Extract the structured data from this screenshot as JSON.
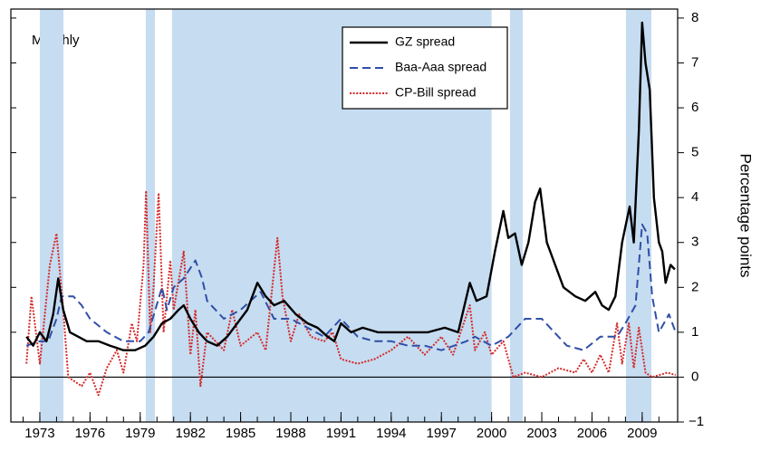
{
  "chart_data": {
    "type": "line",
    "annotation": "Monthly",
    "y_label": "Percentage points",
    "xlim": [
      1971.27,
      2011.12
    ],
    "ylim": [
      -1,
      8.2
    ],
    "xticks": [
      1973,
      1976,
      1979,
      1982,
      1985,
      1988,
      1991,
      1994,
      1997,
      2000,
      2003,
      2006,
      2009
    ],
    "xminorticks": [
      1972,
      1973,
      1974,
      1975,
      1976,
      1977,
      1978,
      1979,
      1980,
      1981,
      1982,
      1983,
      1984,
      1985,
      1986,
      1987,
      1988,
      1989,
      1990,
      1991,
      1992,
      1993,
      1994,
      1995,
      1996,
      1997,
      1998,
      1999,
      2000,
      2001,
      2002,
      2003,
      2004,
      2005,
      2006,
      2007,
      2008,
      2009,
      2010
    ],
    "yticks": [
      {
        "value": -1,
        "label": "−1"
      },
      0,
      1,
      2,
      3,
      4,
      5,
      6,
      7,
      8
    ],
    "zero_line": 0,
    "recessions": [
      [
        1973.0,
        1974.41
      ],
      [
        1979.33,
        1979.88
      ],
      [
        1980.9,
        2000.0
      ],
      [
        1990.16,
        1990.92
      ],
      [
        2001.1,
        2001.86
      ],
      [
        2008.03,
        2009.55
      ]
    ],
    "recession_color": "#c6dcf1",
    "legend": "top-center",
    "series": [
      {
        "name": "GZ spread",
        "color": "#000000",
        "dash": "solid",
        "x": [
          1972.2,
          1972.6,
          1973.0,
          1973.4,
          1973.8,
          1974.1,
          1974.4,
          1974.8,
          1975.3,
          1975.8,
          1976.5,
          1977.2,
          1978.0,
          1978.7,
          1979.3,
          1979.8,
          1980.3,
          1980.8,
          1981.3,
          1981.6,
          1982.0,
          1982.5,
          1983.0,
          1983.6,
          1984.2,
          1984.8,
          1985.4,
          1986.0,
          1986.5,
          1987.0,
          1987.6,
          1988.3,
          1989.0,
          1989.6,
          1990.2,
          1990.6,
          1991.0,
          1991.6,
          1992.3,
          1993.2,
          1994.2,
          1995.2,
          1996.2,
          1997.2,
          1998.0,
          1998.7,
          1999.1,
          1999.7,
          2000.2,
          2000.7,
          2001.0,
          2001.4,
          2001.8,
          2002.2,
          2002.6,
          2002.9,
          2003.3,
          2003.8,
          2004.3,
          2005.0,
          2005.6,
          2006.2,
          2006.6,
          2007.0,
          2007.4,
          2007.8,
          2008.25,
          2008.5,
          2008.8,
          2009.0,
          2009.2,
          2009.45,
          2009.7,
          2010.0,
          2010.2,
          2010.4,
          2010.7,
          2010.95
        ],
        "values": [
          0.9,
          0.7,
          1.0,
          0.8,
          1.4,
          2.2,
          1.5,
          1.0,
          0.9,
          0.8,
          0.8,
          0.7,
          0.6,
          0.6,
          0.7,
          0.9,
          1.2,
          1.3,
          1.5,
          1.6,
          1.3,
          1.0,
          0.8,
          0.7,
          0.9,
          1.2,
          1.5,
          2.1,
          1.8,
          1.6,
          1.7,
          1.4,
          1.2,
          1.1,
          0.9,
          0.8,
          1.2,
          1.0,
          1.1,
          1.0,
          1.0,
          1.0,
          1.0,
          1.1,
          1.0,
          2.1,
          1.7,
          1.8,
          2.8,
          3.7,
          3.1,
          3.2,
          2.5,
          3.0,
          3.9,
          4.2,
          3.0,
          2.5,
          2.0,
          1.8,
          1.7,
          1.9,
          1.6,
          1.5,
          1.8,
          3.0,
          3.8,
          3.0,
          5.5,
          7.9,
          7.0,
          6.4,
          4.0,
          3.0,
          2.8,
          2.1,
          2.5,
          2.4
        ]
      },
      {
        "name": "Baa-Aaa spread",
        "color": "#2f4fa8",
        "dash": "dashed",
        "x": [
          1972.2,
          1973.0,
          1973.5,
          1974.0,
          1974.3,
          1975.0,
          1975.5,
          1976.0,
          1977.0,
          1978.0,
          1979.0,
          1979.5,
          1979.9,
          1980.3,
          1980.6,
          1981.0,
          1981.6,
          1982.3,
          1982.7,
          1983.0,
          1984.0,
          1985.0,
          1986.2,
          1987.0,
          1988.0,
          1989.0,
          1990.0,
          1991.0,
          1992.0,
          1993.0,
          1994.0,
          1995.0,
          1996.0,
          1997.0,
          1998.5,
          1999.0,
          2000.0,
          2001.0,
          2002.0,
          2003.0,
          2004.5,
          2005.5,
          2006.5,
          2007.5,
          2008.0,
          2008.6,
          2009.0,
          2009.3,
          2009.6,
          2010.0,
          2010.6,
          2011.0
        ],
        "values": [
          0.7,
          0.8,
          0.8,
          1.3,
          1.8,
          1.8,
          1.6,
          1.3,
          1.0,
          0.8,
          0.8,
          1.0,
          1.5,
          2.0,
          1.5,
          2.0,
          2.2,
          2.6,
          2.2,
          1.7,
          1.3,
          1.5,
          1.9,
          1.3,
          1.3,
          1.1,
          0.9,
          1.3,
          0.9,
          0.8,
          0.8,
          0.7,
          0.7,
          0.6,
          0.8,
          0.9,
          0.7,
          0.9,
          1.3,
          1.3,
          0.7,
          0.6,
          0.9,
          0.9,
          1.2,
          1.6,
          3.4,
          3.2,
          1.8,
          1.0,
          1.4,
          1.0
        ]
      },
      {
        "name": "CP-Bill spread",
        "color": "#d42a2a",
        "dash": "dotted",
        "x": [
          1972.2,
          1972.5,
          1973.0,
          1973.6,
          1974.0,
          1974.4,
          1974.7,
          1975.5,
          1976.0,
          1976.5,
          1977.0,
          1977.6,
          1978.0,
          1978.5,
          1978.8,
          1979.2,
          1979.35,
          1979.6,
          1979.8,
          1980.1,
          1980.4,
          1980.8,
          1981.0,
          1981.6,
          1982.0,
          1982.3,
          1982.6,
          1983.0,
          1984.0,
          1984.5,
          1985.0,
          1986.0,
          1986.5,
          1987.2,
          1987.5,
          1988.0,
          1988.5,
          1989.2,
          1990.0,
          1990.5,
          1991.0,
          1992.0,
          1993.0,
          1994.0,
          1995.0,
          1996.0,
          1997.0,
          1997.7,
          1998.7,
          1999.0,
          1999.6,
          2000.0,
          2000.7,
          2001.0,
          2001.3,
          2002.0,
          2003.0,
          2004.0,
          2005.0,
          2005.5,
          2006.0,
          2006.5,
          2007.0,
          2007.5,
          2007.8,
          2008.2,
          2008.5,
          2008.8,
          2009.2,
          2009.6,
          2010.5,
          2011.0
        ],
        "values": [
          0.3,
          1.8,
          0.3,
          2.5,
          3.2,
          1.5,
          0.0,
          -0.2,
          0.1,
          -0.4,
          0.2,
          0.6,
          0.1,
          1.2,
          0.8,
          2.5,
          4.15,
          1.0,
          2.0,
          4.1,
          1.0,
          2.6,
          1.5,
          2.8,
          0.5,
          1.5,
          -0.2,
          1.0,
          0.6,
          1.5,
          0.7,
          1.0,
          0.6,
          3.1,
          1.8,
          0.8,
          1.4,
          0.9,
          0.8,
          1.0,
          0.4,
          0.3,
          0.4,
          0.6,
          0.9,
          0.5,
          0.9,
          0.5,
          1.6,
          0.6,
          1.0,
          0.5,
          0.8,
          0.4,
          0.0,
          0.1,
          0.0,
          0.2,
          0.1,
          0.4,
          0.1,
          0.5,
          0.1,
          1.2,
          0.3,
          1.2,
          0.2,
          1.1,
          0.1,
          0.0,
          0.1,
          0.05
        ]
      }
    ]
  }
}
